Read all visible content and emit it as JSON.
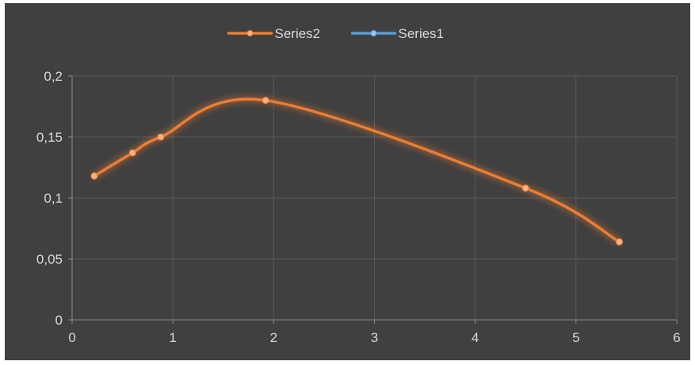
{
  "chart_data": {
    "type": "scatter",
    "smooth": true,
    "title": "",
    "xlabel": "",
    "ylabel": "",
    "xlim": [
      0,
      6
    ],
    "ylim": [
      0,
      0.2
    ],
    "x_ticks": [
      0,
      1,
      2,
      3,
      4,
      5,
      6
    ],
    "y_ticks": [
      0,
      0.05,
      0.1,
      0.15,
      0.2
    ],
    "x_tick_labels": [
      "0",
      "1",
      "2",
      "3",
      "4",
      "5",
      "6"
    ],
    "y_tick_labels": [
      "0",
      "0,05",
      "0,1",
      "0,15",
      "0,2"
    ],
    "grid": true,
    "legend_position": "top",
    "background": "#404040",
    "series": [
      {
        "name": "Series2",
        "color": "#ed7d31",
        "marker_color": "#f4b183",
        "x": [
          0.22,
          0.6,
          0.88,
          1.92,
          4.5,
          5.43
        ],
        "y": [
          0.118,
          0.137,
          0.15,
          0.18,
          0.108,
          0.064
        ]
      },
      {
        "name": "Series1",
        "color": "#5b9bd5",
        "marker_color": "#9dc3e6",
        "x": [],
        "y": []
      }
    ]
  }
}
